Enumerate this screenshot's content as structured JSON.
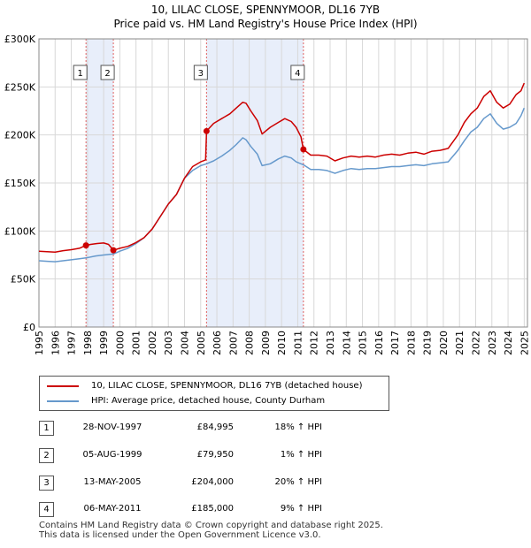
{
  "title_line1": "10, LILAC CLOSE, SPENNYMOOR, DL16 7YB",
  "title_line2": "Price paid vs. HM Land Registry's House Price Index (HPI)",
  "colors": {
    "property": "#cc0000",
    "hpi": "#6699cc",
    "shade": "#e8eefa",
    "vline": "#e06060"
  },
  "legend": {
    "property": "10, LILAC CLOSE, SPENNYMOOR, DL16 7YB (detached house)",
    "hpi": "HPI: Average price, detached house, County Durham"
  },
  "sales": [
    {
      "num": "1",
      "date": "28-NOV-1997",
      "price": "£84,995",
      "hpi": "18% ↑ HPI"
    },
    {
      "num": "2",
      "date": "05-AUG-1999",
      "price": "£79,950",
      "hpi": "1% ↑ HPI"
    },
    {
      "num": "3",
      "date": "13-MAY-2005",
      "price": "£204,000",
      "hpi": "20% ↑ HPI"
    },
    {
      "num": "4",
      "date": "06-MAY-2011",
      "price": "£185,000",
      "hpi": "9% ↑ HPI"
    }
  ],
  "footer": {
    "line1": "Contains HM Land Registry data © Crown copyright and database right 2025.",
    "line2": "This data is licensed under the Open Government Licence v3.0."
  },
  "chart_data": {
    "type": "line",
    "title": "10, LILAC CLOSE, SPENNYMOOR, DL16 7YB\nPrice paid vs. HM Land Registry's House Price Index (HPI)",
    "xlabel": "",
    "ylabel": "",
    "xlim": [
      1995,
      2025.2
    ],
    "ylim": [
      0,
      300000
    ],
    "x_ticks": [
      1995,
      1996,
      1997,
      1998,
      1999,
      2000,
      2001,
      2002,
      2003,
      2004,
      2005,
      2006,
      2007,
      2008,
      2009,
      2010,
      2011,
      2012,
      2013,
      2014,
      2015,
      2016,
      2017,
      2018,
      2019,
      2020,
      2021,
      2022,
      2023,
      2024,
      2025
    ],
    "y_ticks": [
      0,
      50000,
      100000,
      150000,
      200000,
      250000,
      300000
    ],
    "y_tick_labels": [
      "£0",
      "£50K",
      "£100K",
      "£150K",
      "£200K",
      "£250K",
      "£300K"
    ],
    "grid": true,
    "shaded_ranges": [
      [
        1997.91,
        1999.6
      ],
      [
        2005.36,
        2011.35
      ]
    ],
    "sale_points": [
      {
        "label": "1",
        "x": 1997.91,
        "y": 84995
      },
      {
        "label": "2",
        "x": 1999.6,
        "y": 79950
      },
      {
        "label": "3",
        "x": 2005.36,
        "y": 204000
      },
      {
        "label": "4",
        "x": 2011.35,
        "y": 185000
      }
    ],
    "series": [
      {
        "name": "10, LILAC CLOSE, SPENNYMOOR, DL16 7YB (detached house)",
        "x": [
          1995,
          1995.5,
          1996,
          1996.5,
          1997,
          1997.5,
          1997.91,
          1998.2,
          1998.6,
          1999,
          1999.3,
          1999.6,
          2000,
          2000.5,
          2001,
          2001.5,
          2002,
          2002.5,
          2003,
          2003.5,
          2004,
          2004.5,
          2005,
          2005.3,
          2005.36,
          2005.8,
          2006.3,
          2006.8,
          2007.2,
          2007.6,
          2007.8,
          2008.1,
          2008.5,
          2008.8,
          2009.3,
          2009.8,
          2010.2,
          2010.6,
          2010.9,
          2011.2,
          2011.35,
          2011.8,
          2012.3,
          2012.8,
          2013.3,
          2013.8,
          2014.3,
          2014.8,
          2015.3,
          2015.8,
          2016.3,
          2016.8,
          2017.3,
          2017.8,
          2018.3,
          2018.8,
          2019.3,
          2019.8,
          2020.3,
          2020.6,
          2020.9,
          2021.3,
          2021.7,
          2022.1,
          2022.5,
          2022.9,
          2023.3,
          2023.7,
          2024.1,
          2024.5,
          2024.8,
          2025
        ],
        "y": [
          79000,
          78500,
          78000,
          79500,
          80500,
          82000,
          84995,
          86000,
          87000,
          87500,
          86000,
          79950,
          82000,
          84000,
          88000,
          93000,
          102000,
          115000,
          128000,
          138000,
          155000,
          167000,
          172000,
          174000,
          204000,
          212000,
          217000,
          222000,
          228000,
          234000,
          233000,
          225000,
          215000,
          201000,
          208000,
          213000,
          217000,
          214000,
          208000,
          198000,
          185000,
          179000,
          179000,
          178000,
          173000,
          176000,
          178000,
          177000,
          178000,
          177000,
          179000,
          180000,
          179000,
          181000,
          182000,
          180000,
          183000,
          184000,
          186000,
          193000,
          200000,
          213000,
          222000,
          228000,
          240000,
          246000,
          234000,
          228000,
          232000,
          242000,
          246000,
          254000
        ]
      },
      {
        "name": "HPI: Average price, detached house, County Durham",
        "x": [
          1995,
          1995.5,
          1996,
          1996.5,
          1997,
          1997.5,
          1997.91,
          1998.5,
          1999,
          1999.6,
          2000,
          2000.5,
          2001,
          2001.5,
          2002,
          2002.5,
          2003,
          2003.5,
          2004,
          2004.5,
          2005,
          2005.36,
          2005.8,
          2006.3,
          2006.8,
          2007.2,
          2007.6,
          2007.8,
          2008.1,
          2008.5,
          2008.8,
          2009.3,
          2009.8,
          2010.2,
          2010.6,
          2010.9,
          2011.35,
          2011.8,
          2012.3,
          2012.8,
          2013.3,
          2013.8,
          2014.3,
          2014.8,
          2015.3,
          2015.8,
          2016.3,
          2016.8,
          2017.3,
          2017.8,
          2018.3,
          2018.8,
          2019.3,
          2019.8,
          2020.3,
          2020.6,
          2020.9,
          2021.3,
          2021.7,
          2022.1,
          2022.5,
          2022.9,
          2023.3,
          2023.7,
          2024.1,
          2024.5,
          2024.8,
          2025
        ],
        "y": [
          69000,
          68500,
          68000,
          69000,
          70000,
          71000,
          72000,
          74000,
          75000,
          76000,
          79000,
          82000,
          87000,
          93000,
          102000,
          115000,
          128000,
          138000,
          155000,
          163000,
          168000,
          170000,
          173000,
          178000,
          184000,
          190000,
          197000,
          195000,
          188000,
          180000,
          168000,
          170000,
          175000,
          178000,
          176000,
          172000,
          169000,
          164000,
          164000,
          163000,
          160000,
          163000,
          165000,
          164000,
          165000,
          165000,
          166000,
          167000,
          167000,
          168000,
          169000,
          168000,
          170000,
          171000,
          172000,
          178000,
          184000,
          194000,
          203000,
          208000,
          217000,
          222000,
          212000,
          206000,
          208000,
          212000,
          220000,
          228000
        ]
      }
    ]
  }
}
